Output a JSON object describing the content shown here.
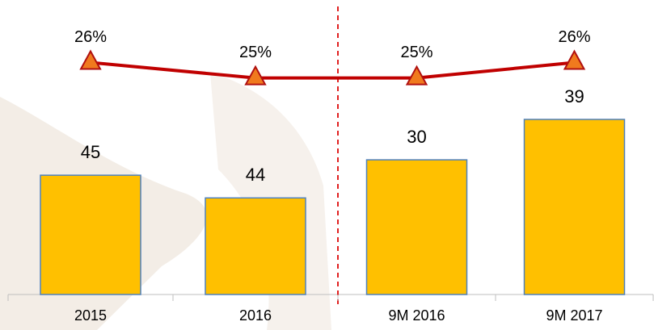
{
  "chart_data": [
    {
      "type": "bar",
      "categories": [
        "2015",
        "2016"
      ],
      "series": [
        {
          "name": null,
          "type": "bar",
          "color": "#ffc000",
          "values": [
            45,
            44
          ]
        },
        {
          "name": null,
          "type": "line",
          "axis": "y2",
          "color": "#c00000",
          "values": [
            26,
            25
          ],
          "value_labels": [
            "26%",
            "25%"
          ]
        }
      ],
      "ylim": [
        39.75,
        52
      ],
      "y2lim": [
        11,
        29
      ]
    },
    {
      "type": "bar",
      "categories": [
        "9M 2016",
        "9M 2017"
      ],
      "series": [
        {
          "name": null,
          "type": "bar",
          "color": "#ffc000",
          "values": [
            30,
            39
          ]
        },
        {
          "name": null,
          "type": "line",
          "axis": "y2",
          "color": "#c00000",
          "values": [
            25,
            26
          ],
          "value_labels": [
            "25%",
            "26%"
          ]
        }
      ],
      "ylim": [
        0,
        62
      ],
      "y2lim": [
        11,
        29
      ]
    }
  ]
}
